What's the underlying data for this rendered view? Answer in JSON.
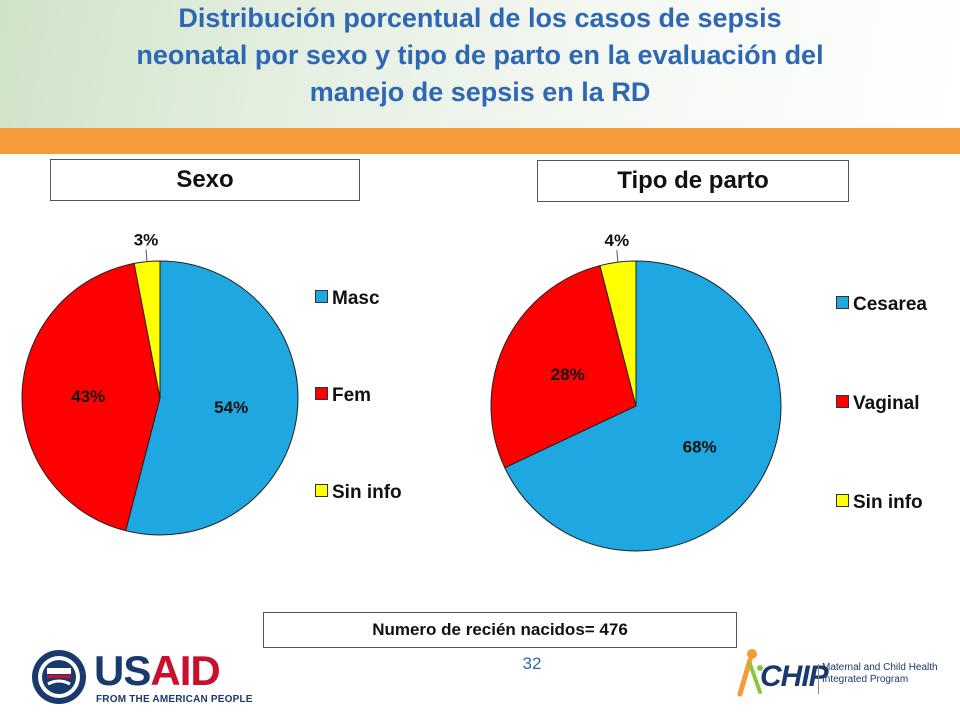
{
  "slide": {
    "title_lines": [
      "Distribución porcentual de los casos de sepsis",
      "neonatal por sexo y tipo de parto en la evaluación del",
      "manejo de sepsis en la RD"
    ],
    "footer_note": "Numero de recién nacidos= 476",
    "page_number": "32"
  },
  "colors": {
    "title": "#2e67b3",
    "orange_band": "#f59b3a",
    "blue_slice": "#1ea7e1",
    "red_slice": "#ff0000",
    "yellow_slice": "#ffff00"
  },
  "logos": {
    "usaid": {
      "word_us": "US",
      "word_aid": "AID",
      "subtitle": "FROM THE AMERICAN PEOPLE",
      "icon": "usaid-seal-icon"
    },
    "mchip": {
      "word": "CHIP",
      "subtitle_lines": [
        "Maternal and Child Health",
        "Integrated Program"
      ],
      "icon": "mchip-figure-icon"
    }
  },
  "chart_data": [
    {
      "type": "pie",
      "title": "Sexo",
      "categories": [
        "Masc",
        "Fem",
        "Sin info"
      ],
      "values": [
        54,
        43,
        3
      ],
      "labels": [
        "54%",
        "43%",
        "3%"
      ],
      "colors": [
        "#1ea7e1",
        "#ff0000",
        "#ffff00"
      ],
      "legend_position": "right"
    },
    {
      "type": "pie",
      "title": "Tipo de parto",
      "categories": [
        "Cesarea",
        "Vaginal",
        "Sin info"
      ],
      "values": [
        68,
        28,
        4
      ],
      "labels": [
        "68%",
        "28%",
        "4%"
      ],
      "colors": [
        "#1ea7e1",
        "#ff0000",
        "#ffff00"
      ],
      "legend_position": "right"
    }
  ]
}
